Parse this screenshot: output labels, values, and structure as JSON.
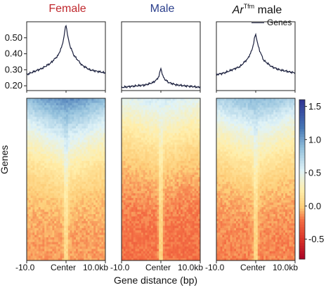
{
  "panels": [
    {
      "title": "Female",
      "color": "#c0282d"
    },
    {
      "title": "Male",
      "color": "#2b3f8c"
    },
    {
      "title_italic": "Ar",
      "title_sup": "Tfm",
      "title_rest": " male",
      "color": "#111111"
    }
  ],
  "legend": {
    "label": "Genes"
  },
  "heatmap": {
    "ylabel": "Genes",
    "colorbar_ticks": [
      "1.5",
      "1.0",
      "0.5",
      "0.0",
      "-0.5"
    ],
    "colorbar_range": [
      -0.8,
      1.6
    ]
  },
  "xaxis": {
    "title": "Gene distance (bp)",
    "ticks": [
      "-10.0",
      "Center",
      "10.0kb"
    ]
  },
  "chart_data": [
    {
      "type": "line",
      "panel": "Female",
      "x": [
        -10,
        -8,
        -6,
        -4,
        -2,
        -1,
        -0.5,
        -0.2,
        0,
        0.2,
        0.5,
        1,
        2,
        4,
        6,
        8,
        10
      ],
      "y": [
        0.27,
        0.29,
        0.31,
        0.34,
        0.39,
        0.45,
        0.51,
        0.56,
        0.58,
        0.55,
        0.5,
        0.45,
        0.39,
        0.33,
        0.3,
        0.29,
        0.28
      ],
      "ylim": [
        0.17,
        0.6
      ],
      "yticks": [
        "0.50",
        "0.40",
        "0.30",
        "0.20"
      ]
    },
    {
      "type": "line",
      "panel": "Male",
      "x": [
        -10,
        -8,
        -6,
        -4,
        -2,
        -1,
        -0.5,
        -0.2,
        0,
        0.2,
        0.5,
        1,
        2,
        4,
        6,
        8,
        10
      ],
      "y": [
        0.19,
        0.195,
        0.2,
        0.205,
        0.22,
        0.24,
        0.26,
        0.29,
        0.31,
        0.29,
        0.26,
        0.24,
        0.22,
        0.205,
        0.2,
        0.195,
        0.19
      ],
      "ylim": [
        0.17,
        0.6
      ]
    },
    {
      "type": "line",
      "panel": "Ar Tfm male",
      "x": [
        -10,
        -8,
        -6,
        -4,
        -2,
        -1,
        -0.5,
        -0.2,
        0,
        0.2,
        0.5,
        1,
        2,
        4,
        6,
        8,
        10
      ],
      "y": [
        0.27,
        0.28,
        0.3,
        0.32,
        0.37,
        0.42,
        0.47,
        0.51,
        0.52,
        0.5,
        0.46,
        0.42,
        0.36,
        0.32,
        0.3,
        0.29,
        0.28
      ],
      "ylim": [
        0.17,
        0.6
      ]
    },
    {
      "type": "heatmap",
      "panel": "Female",
      "description_values": {
        "top_center": 1.1,
        "top_flank": 0.7,
        "bottom_center": 0.15,
        "bottom_flank": -0.1
      }
    },
    {
      "type": "heatmap",
      "panel": "Male",
      "description_values": {
        "top_center": 0.6,
        "top_flank": 0.4,
        "bottom_center": 0.1,
        "bottom_flank": -0.2
      }
    },
    {
      "type": "heatmap",
      "panel": "Ar Tfm male",
      "description_values": {
        "top_center": 0.9,
        "top_flank": 0.6,
        "bottom_center": 0.1,
        "bottom_flank": -0.15
      }
    }
  ]
}
